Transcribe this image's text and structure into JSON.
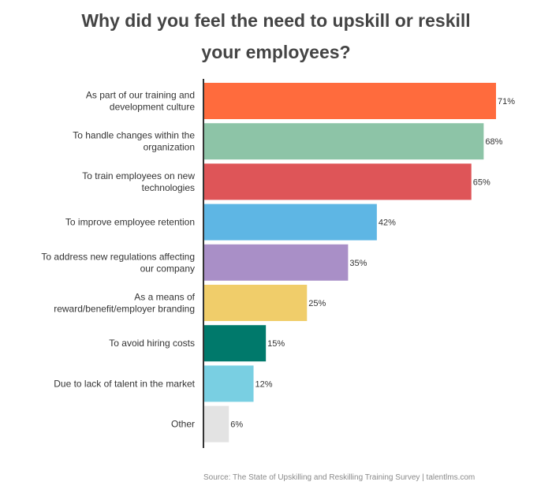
{
  "chart_data": {
    "type": "bar",
    "orientation": "horizontal",
    "title_lines": [
      "Why did you feel the need to upskill or reskill",
      "your employees?"
    ],
    "categories": [
      [
        "As part of our training and",
        "development culture"
      ],
      [
        "To handle changes within the",
        "organization"
      ],
      [
        "To train employees on new",
        "technologies"
      ],
      [
        "To improve employee retention"
      ],
      [
        "To address new regulations affecting",
        "our company"
      ],
      [
        "As a means of",
        "reward/benefit/employer branding"
      ],
      [
        "To avoid hiring costs"
      ],
      [
        "Due to lack of talent in the market"
      ],
      [
        "Other"
      ]
    ],
    "values": [
      71,
      68,
      65,
      42,
      35,
      25,
      15,
      12,
      6
    ],
    "value_labels": [
      "71%",
      "68%",
      "65%",
      "42%",
      "35%",
      "25%",
      "15%",
      "12%",
      "6%"
    ],
    "colors": [
      "#ff6b3d",
      "#8dc4a7",
      "#de5558",
      "#5eb6e4",
      "#a98fc7",
      "#f0cd6a",
      "#00796b",
      "#79cfe2",
      "#e3e3e3"
    ],
    "xlim": [
      0,
      71
    ],
    "grid": false,
    "legend": "none"
  },
  "source": "Source: The State of Upskilling and Reskilling Training Survey  |  talentlms.com"
}
